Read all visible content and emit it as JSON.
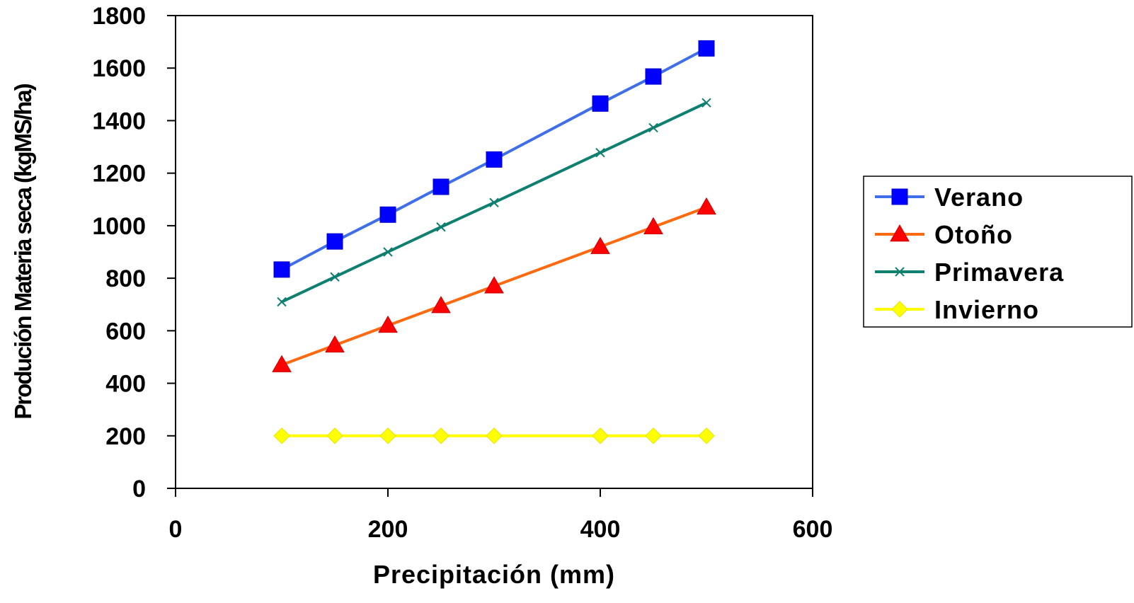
{
  "chart_data": {
    "type": "line",
    "xlabel": "Precipitación (mm)",
    "ylabel": "Produción Materia seca (kgMS/ha)",
    "xlim": [
      0,
      600
    ],
    "ylim": [
      0,
      1800
    ],
    "x_ticks": [
      0,
      200,
      400,
      600
    ],
    "y_ticks": [
      0,
      200,
      400,
      600,
      800,
      1000,
      1200,
      1400,
      1600,
      1800
    ],
    "grid": false,
    "legend_position": "right",
    "x": [
      100,
      150,
      200,
      250,
      300,
      400,
      450,
      500
    ],
    "series": [
      {
        "name": "Verano",
        "values": [
          833,
          940,
          1042,
          1148,
          1252,
          1465,
          1568,
          1675
        ],
        "color": "#3f6fe8",
        "marker": "square",
        "marker_color": "#0000ff"
      },
      {
        "name": "Otoño",
        "values": [
          470,
          545,
          620,
          695,
          770,
          920,
          995,
          1070
        ],
        "color": "#ff6a10",
        "marker": "triangle",
        "marker_color": "#ff0000"
      },
      {
        "name": "Primavera",
        "values": [
          710,
          805,
          900,
          995,
          1088,
          1278,
          1373,
          1468
        ],
        "color": "#0f7f70",
        "marker": "x",
        "marker_color": "#0f7f70"
      },
      {
        "name": "Invierno",
        "values": [
          200,
          200,
          200,
          200,
          200,
          200,
          200,
          200
        ],
        "color": "#ffff00",
        "marker": "diamond",
        "marker_color": "#ffff00"
      }
    ]
  }
}
